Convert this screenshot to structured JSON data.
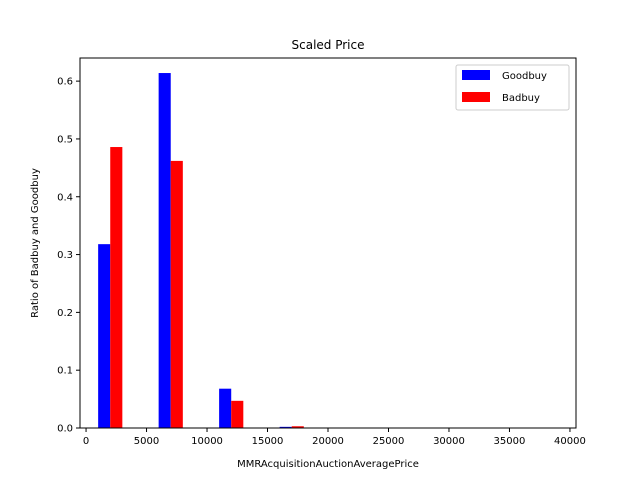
{
  "chart_data": {
    "type": "bar",
    "title": "Scaled Price",
    "xlabel": "MMRAcquisitionAuctionAveragePrice",
    "ylabel": "Ratio of Badbuy and Goodbuy",
    "xlim": [
      -500,
      40500
    ],
    "ylim": [
      0,
      0.64
    ],
    "xticks": [
      0,
      5000,
      10000,
      15000,
      20000,
      25000,
      30000,
      35000,
      40000
    ],
    "xtick_labels": [
      "0",
      "5000",
      "10000",
      "15000",
      "20000",
      "25000",
      "30000",
      "35000",
      "40000"
    ],
    "yticks": [
      0.0,
      0.1,
      0.2,
      0.3,
      0.4,
      0.5,
      0.6
    ],
    "ytick_labels": [
      "0.0",
      "0.1",
      "0.2",
      "0.3",
      "0.4",
      "0.5",
      "0.6"
    ],
    "bar_width": 1000,
    "grid": false,
    "legend_position": "top-right",
    "series": [
      {
        "name": "Goodbuy",
        "color": "#0000ff",
        "x": [
          1500,
          6500,
          11500,
          16500,
          21500
        ],
        "values": [
          0.318,
          0.614,
          0.068,
          0.002,
          0.0
        ]
      },
      {
        "name": "Badbuy",
        "color": "#ff0000",
        "x": [
          2500,
          7500,
          12500,
          17500,
          22500
        ],
        "values": [
          0.486,
          0.462,
          0.047,
          0.003,
          0.0
        ]
      }
    ]
  }
}
